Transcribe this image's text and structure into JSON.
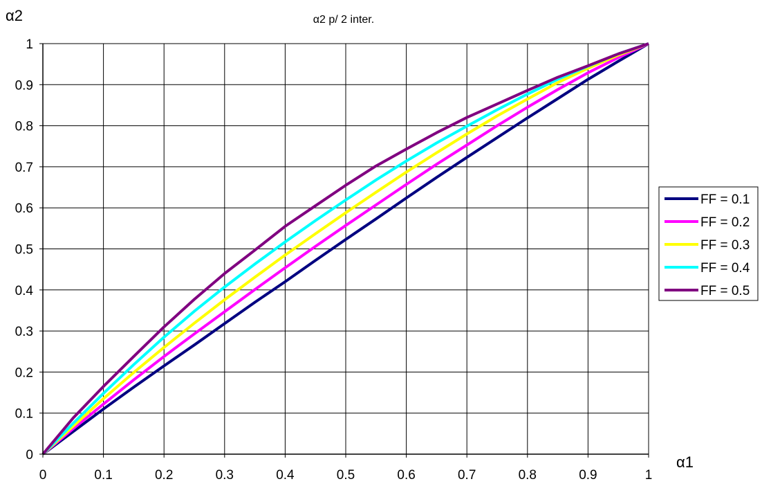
{
  "chart_data": {
    "type": "line",
    "title": "α2 p/ 2 inter.",
    "xlabel": "α1",
    "ylabel": "α2",
    "xlim": [
      0,
      1
    ],
    "ylim": [
      0,
      1
    ],
    "xticks": [
      "0",
      "0.1",
      "0.2",
      "0.3",
      "0.4",
      "0.5",
      "0.6",
      "0.7",
      "0.8",
      "0.9",
      "1"
    ],
    "yticks": [
      "0",
      "0.1",
      "0.2",
      "0.3",
      "0.4",
      "0.5",
      "0.6",
      "0.7",
      "0.8",
      "0.9",
      "1"
    ],
    "grid": true,
    "legend_position": "right",
    "x": [
      0,
      0.05,
      0.1,
      0.15,
      0.2,
      0.25,
      0.3,
      0.35,
      0.4,
      0.45,
      0.5,
      0.55,
      0.6,
      0.65,
      0.7,
      0.75,
      0.8,
      0.85,
      0.9,
      0.95,
      1
    ],
    "series": [
      {
        "name": "FF = 0.1",
        "color": "#000080",
        "values": [
          0,
          0.055,
          0.11,
          0.163,
          0.215,
          0.266,
          0.318,
          0.37,
          0.42,
          0.472,
          0.523,
          0.573,
          0.624,
          0.674,
          0.723,
          0.771,
          0.819,
          0.866,
          0.913,
          0.957,
          1
        ]
      },
      {
        "name": "FF = 0.2",
        "color": "#FF00FF",
        "values": [
          0,
          0.062,
          0.122,
          0.181,
          0.238,
          0.293,
          0.347,
          0.401,
          0.454,
          0.506,
          0.557,
          0.607,
          0.657,
          0.706,
          0.753,
          0.8,
          0.845,
          0.888,
          0.929,
          0.966,
          1
        ]
      },
      {
        "name": "FF = 0.3",
        "color": "#FFFF00",
        "values": [
          0,
          0.068,
          0.135,
          0.199,
          0.26,
          0.319,
          0.376,
          0.431,
          0.485,
          0.537,
          0.588,
          0.638,
          0.687,
          0.734,
          0.78,
          0.824,
          0.865,
          0.905,
          0.94,
          0.972,
          1
        ]
      },
      {
        "name": "FF = 0.4",
        "color": "#00FFFF",
        "values": [
          0,
          0.075,
          0.148,
          0.218,
          0.285,
          0.348,
          0.407,
          0.463,
          0.517,
          0.569,
          0.619,
          0.668,
          0.714,
          0.758,
          0.799,
          0.839,
          0.877,
          0.913,
          0.945,
          0.975,
          1
        ]
      },
      {
        "name": "FF = 0.5",
        "color": "#800080",
        "values": [
          0,
          0.088,
          0.165,
          0.238,
          0.31,
          0.377,
          0.44,
          0.497,
          0.555,
          0.605,
          0.655,
          0.702,
          0.743,
          0.783,
          0.82,
          0.853,
          0.886,
          0.918,
          0.946,
          0.975,
          1
        ]
      }
    ]
  }
}
